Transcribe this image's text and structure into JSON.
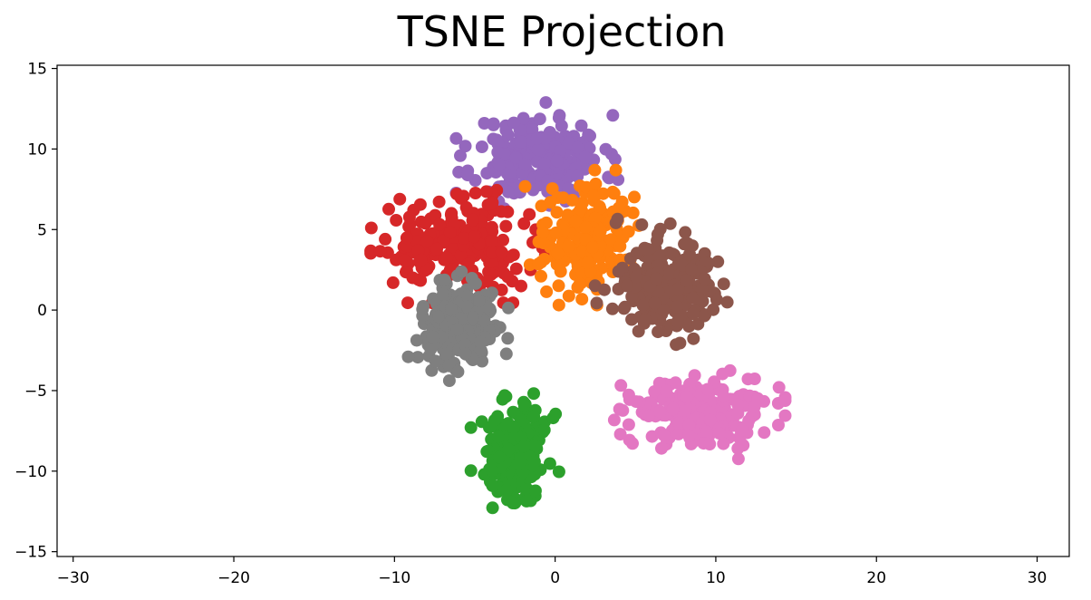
{
  "chart_data": {
    "type": "scatter",
    "title": "TSNE Projection",
    "xlabel": "",
    "ylabel": "",
    "xlim": [
      -31,
      32
    ],
    "ylim": [
      -15.3,
      15.2
    ],
    "x_ticks": [
      -30,
      -20,
      -10,
      0,
      10,
      20,
      30
    ],
    "y_ticks": [
      15,
      10,
      5,
      0,
      -5,
      -10,
      -15
    ],
    "x_tick_labels": [
      "−30",
      "−20",
      "−10",
      "0",
      "10",
      "20",
      "30"
    ],
    "y_tick_labels": [
      "15",
      "10",
      "5",
      "0",
      "−5",
      "−10",
      "−15"
    ],
    "grid": false,
    "legend": "none",
    "series": [
      {
        "color": "#9467bd",
        "cluster": {
          "center": [
            -1,
            9.5
          ],
          "spread": [
            3.2,
            2.1
          ],
          "count": 220,
          "seed": 11
        }
      },
      {
        "color": "#d62728",
        "cluster": {
          "center": [
            -6,
            4
          ],
          "spread": [
            3.4,
            2.2
          ],
          "count": 230,
          "seed": 22
        }
      },
      {
        "color": "#ff7f0e",
        "cluster": {
          "center": [
            2,
            4.5
          ],
          "spread": [
            2.4,
            2.6
          ],
          "count": 200,
          "seed": 33
        }
      },
      {
        "color": "#8c564b",
        "cluster": {
          "center": [
            7,
            1.5
          ],
          "spread": [
            2.8,
            2.6
          ],
          "count": 230,
          "seed": 44
        }
      },
      {
        "color": "#7f7f7f",
        "cluster": {
          "center": [
            -6,
            -1
          ],
          "spread": [
            2.0,
            2.1
          ],
          "count": 200,
          "seed": 55
        }
      },
      {
        "color": "#e377c2",
        "cluster": {
          "center": [
            9,
            -6.5
          ],
          "spread": [
            3.3,
            1.7
          ],
          "count": 220,
          "seed": 66
        }
      },
      {
        "color": "#2ca02c",
        "cluster": {
          "center": [
            -2.5,
            -9
          ],
          "spread": [
            1.7,
            2.5
          ],
          "count": 220,
          "seed": 77
        }
      }
    ]
  }
}
